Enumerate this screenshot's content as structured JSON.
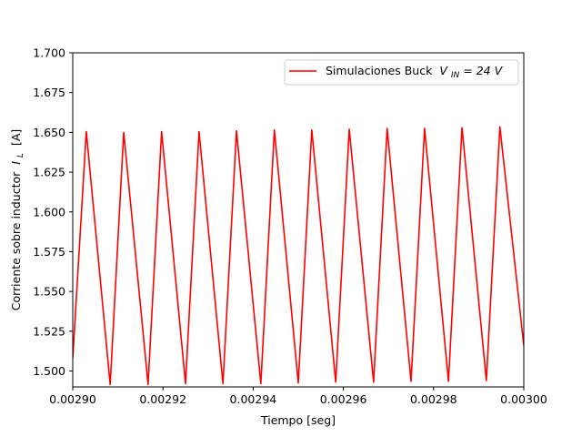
{
  "chart_data": {
    "type": "line",
    "title": "",
    "xlabel": "Tiempo [seg]",
    "ylabel": "Corriente sobre inductor",
    "ylabel_symbol": "I",
    "ylabel_subscript": "L",
    "ylabel_unit": "[A]",
    "xlim": [
      0.0029,
      0.003
    ],
    "ylim": [
      1.49,
      1.7
    ],
    "x_ticks": [
      "0.00290",
      "0.00292",
      "0.00294",
      "0.00296",
      "0.00298",
      "0.00300"
    ],
    "x_tick_values": [
      0.0029,
      0.00292,
      0.00294,
      0.00296,
      0.00298,
      0.003
    ],
    "y_ticks": [
      "1.500",
      "1.525",
      "1.550",
      "1.575",
      "1.600",
      "1.625",
      "1.650",
      "1.675",
      "1.700"
    ],
    "y_tick_values": [
      1.5,
      1.525,
      1.55,
      1.575,
      1.6,
      1.625,
      1.65,
      1.675,
      1.7
    ],
    "grid": false,
    "legend_position": "top-right",
    "series": [
      {
        "name": "Simulaciones Buck",
        "name_math": "V",
        "name_math_sub": "IN",
        "name_math_rest": " = 24 V",
        "color": "#ff0000",
        "x": [
          0.0029,
          0.002903,
          0.0029083,
          0.0029113,
          0.0029167,
          0.0029197,
          0.002925,
          0.002928,
          0.0029333,
          0.0029363,
          0.0029417,
          0.0029447,
          0.00295,
          0.002953,
          0.0029583,
          0.0029613,
          0.0029667,
          0.0029697,
          0.002975,
          0.002978,
          0.0029833,
          0.0029863,
          0.0029917,
          0.0029947,
          0.003
        ],
        "y": [
          1.508,
          1.6505,
          1.4915,
          1.65,
          1.4915,
          1.6505,
          1.492,
          1.6505,
          1.492,
          1.651,
          1.492,
          1.6515,
          1.4925,
          1.6515,
          1.493,
          1.652,
          1.493,
          1.6525,
          1.4935,
          1.6525,
          1.4935,
          1.653,
          1.494,
          1.6535,
          1.516
        ]
      }
    ]
  }
}
